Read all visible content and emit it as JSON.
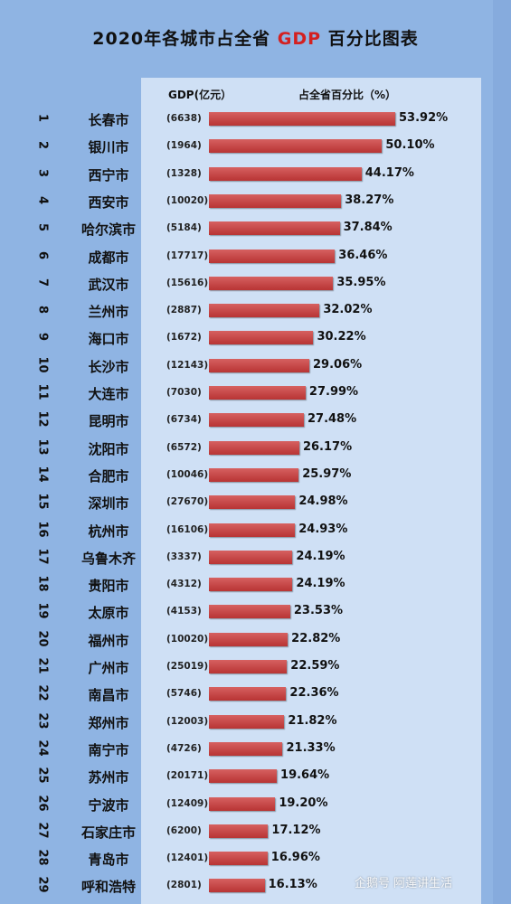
{
  "title_parts": {
    "before": "2020年各城市占全省",
    "accent": "GDP",
    "after": "百分比图表"
  },
  "header": {
    "gdp": "GDP(亿元）",
    "pct": "占全省百分比（%）"
  },
  "colors": {
    "background": "#8fb4e3",
    "panel": "#cfe0f5",
    "bar": "#c44545",
    "title_accent": "#d42020"
  },
  "watermark": "企鹅号 阿莲讲生活",
  "chart_data": {
    "type": "bar",
    "orientation": "horizontal",
    "title": "2020年各城市占全省GDP百分比图表",
    "categories": [
      "长春市",
      "银川市",
      "西宁市",
      "西安市",
      "哈尔滨市",
      "成都市",
      "武汉市",
      "兰州市",
      "海口市",
      "长沙市",
      "大连市",
      "昆明市",
      "沈阳市",
      "合肥市",
      "深圳市",
      "杭州市",
      "乌鲁木齐",
      "贵阳市",
      "太原市",
      "福州市",
      "广州市",
      "南昌市",
      "郑州市",
      "南宁市",
      "苏州市",
      "宁波市",
      "石家庄市",
      "青岛市",
      "呼和浩特"
    ],
    "ranks": [
      1,
      2,
      3,
      4,
      5,
      6,
      7,
      8,
      9,
      10,
      11,
      12,
      13,
      14,
      15,
      16,
      17,
      18,
      19,
      20,
      21,
      22,
      23,
      24,
      25,
      26,
      27,
      28,
      29
    ],
    "gdp_labels": [
      "(6638)",
      "(1964)",
      "(1328)",
      "(10020)",
      "(5184)",
      "(17717)",
      "(15616)",
      "(2887)",
      "(1672)",
      "(12143)",
      "(7030)",
      "(6734)",
      "(6572)",
      "(10046)",
      "(27670)",
      "(16106)",
      "(3337)",
      "(4312)",
      "(4153)",
      "(10020)",
      "(25019)",
      "(5746)",
      "(12003)",
      "(4726)",
      "(20171)",
      "(12409)",
      "(6200)",
      "(12401)",
      "(2801)"
    ],
    "values": [
      53.92,
      50.1,
      44.17,
      38.27,
      37.84,
      36.46,
      35.95,
      32.02,
      30.22,
      29.06,
      27.99,
      27.48,
      26.17,
      25.97,
      24.98,
      24.93,
      24.19,
      24.19,
      23.53,
      22.82,
      22.59,
      22.36,
      21.82,
      21.33,
      19.64,
      19.2,
      17.12,
      16.96,
      16.13
    ],
    "value_labels": [
      "53.92%",
      "50.10%",
      "44.17%",
      "38.27%",
      "37.84%",
      "36.46%",
      "35.95%",
      "32.02%",
      "30.22%",
      "29.06%",
      "27.99%",
      "27.48%",
      "26.17%",
      "25.97%",
      "24.98%",
      "24.93%",
      "24.19%",
      "24.19%",
      "23.53%",
      "22.82%",
      "22.59%",
      "22.36%",
      "21.82%",
      "21.33%",
      "19.64%",
      "19.20%",
      "17.12%",
      "16.96%",
      "16.13%"
    ],
    "xlim": [
      0,
      53.92
    ],
    "legend": "none",
    "grid": false
  }
}
